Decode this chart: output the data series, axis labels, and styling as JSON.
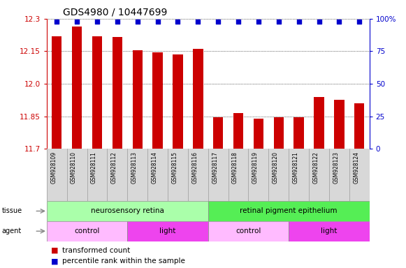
{
  "title": "GDS4980 / 10447699",
  "samples": [
    "GSM928109",
    "GSM928110",
    "GSM928111",
    "GSM928112",
    "GSM928113",
    "GSM928114",
    "GSM928115",
    "GSM928116",
    "GSM928117",
    "GSM928118",
    "GSM928119",
    "GSM928120",
    "GSM928121",
    "GSM928122",
    "GSM928123",
    "GSM928124"
  ],
  "bar_values": [
    12.22,
    12.265,
    12.22,
    12.215,
    12.155,
    12.145,
    12.135,
    12.16,
    11.845,
    11.865,
    11.84,
    11.845,
    11.845,
    11.94,
    11.925,
    11.91
  ],
  "percentile_values": [
    100,
    100,
    100,
    100,
    100,
    100,
    100,
    100,
    100,
    100,
    100,
    100,
    100,
    100,
    100,
    100
  ],
  "bar_color": "#cc0000",
  "percentile_color": "#0000cc",
  "ylim_left": [
    11.7,
    12.3
  ],
  "ylim_right": [
    0,
    100
  ],
  "yticks_left": [
    11.7,
    11.85,
    12.0,
    12.15,
    12.3
  ],
  "yticks_right": [
    0,
    25,
    50,
    75,
    100
  ],
  "tissue_labels": [
    {
      "text": "neurosensory retina",
      "start": 0,
      "end": 8,
      "color": "#aaffaa"
    },
    {
      "text": "retinal pigment epithelium",
      "start": 8,
      "end": 16,
      "color": "#55ee55"
    }
  ],
  "agent_labels": [
    {
      "text": "control",
      "start": 0,
      "end": 4,
      "color": "#ffbbff"
    },
    {
      "text": "light",
      "start": 4,
      "end": 8,
      "color": "#ee44ee"
    },
    {
      "text": "control",
      "start": 8,
      "end": 12,
      "color": "#ffbbff"
    },
    {
      "text": "light",
      "start": 12,
      "end": 16,
      "color": "#ee44ee"
    }
  ],
  "legend_items": [
    {
      "label": "transformed count",
      "color": "#cc0000"
    },
    {
      "label": "percentile rank within the sample",
      "color": "#0000cc"
    }
  ],
  "bar_width": 0.5
}
